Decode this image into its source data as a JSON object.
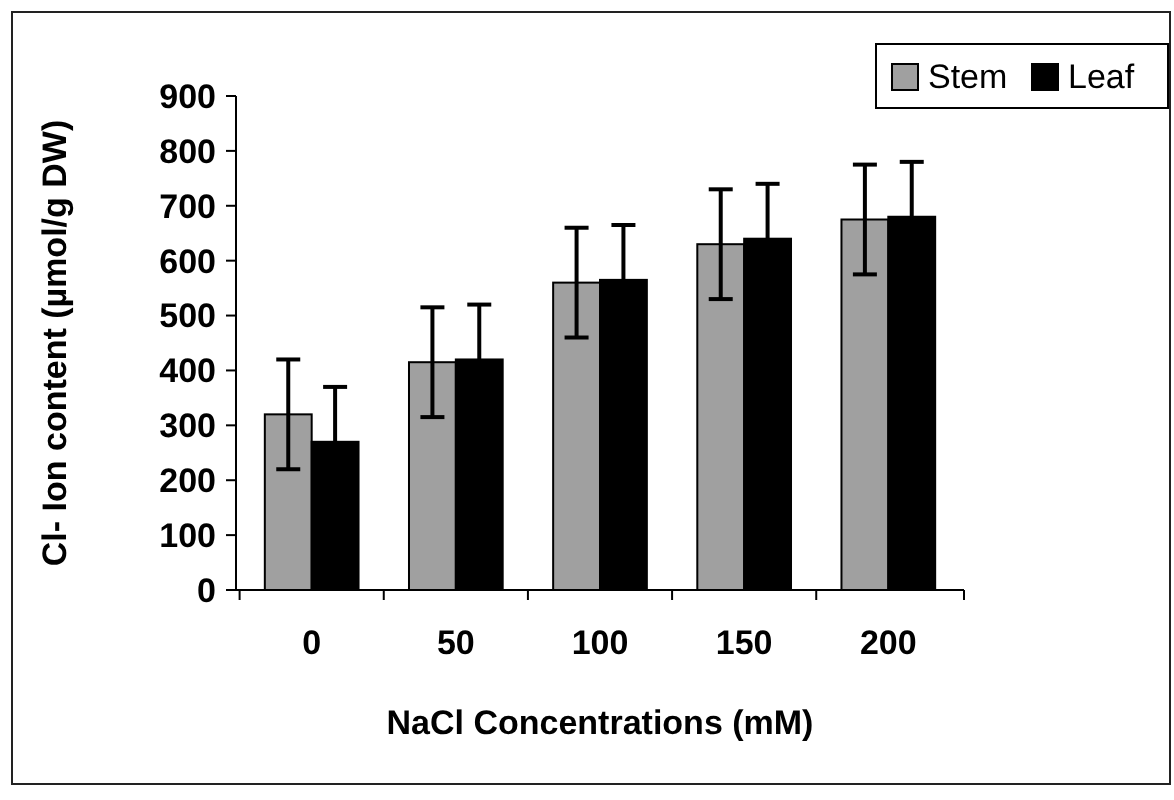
{
  "chart_data": {
    "type": "bar",
    "xlabel": "NaCl Concentrations (mM)",
    "ylabel": "Cl- Ion content (µmol/g DW)",
    "categories": [
      "0",
      "50",
      "100",
      "150",
      "200"
    ],
    "series": [
      {
        "name": "Stem",
        "color": "#a0a0a0",
        "values": [
          320,
          415,
          560,
          630,
          675
        ],
        "errors": [
          100,
          100,
          100,
          100,
          100
        ]
      },
      {
        "name": "Leaf",
        "color": "#000000",
        "values": [
          270,
          420,
          565,
          640,
          680
        ],
        "errors": [
          100,
          100,
          100,
          100,
          100
        ]
      }
    ],
    "ylim": [
      0,
      900
    ],
    "yticks": [
      0,
      100,
      200,
      300,
      400,
      500,
      600,
      700,
      800,
      900
    ],
    "grid": false,
    "legend": "top right"
  }
}
